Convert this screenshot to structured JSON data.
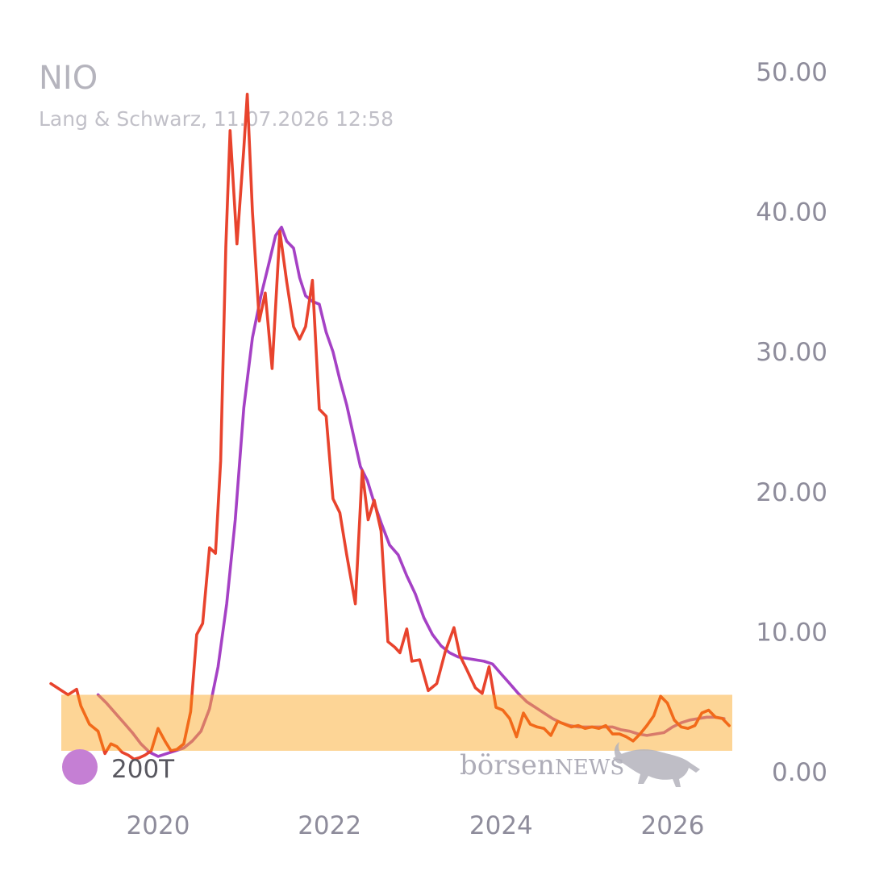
{
  "header": {
    "title": "NIO",
    "subtitle": "Lang & Schwarz, 11.07.2026 12:58"
  },
  "legend": {
    "label": "200T",
    "color": "#c57fd4"
  },
  "watermark": {
    "brand_lower": "börsen",
    "brand_upper": "NEWS",
    "icon": "bull-icon"
  },
  "colors": {
    "price": "#e8432d",
    "price_in_band": "#f26a1a",
    "sma": "#a541c5",
    "sma_in_band": "#d87a6a",
    "band": "#fdd596"
  },
  "chart_data": {
    "type": "line",
    "title": "NIO",
    "subtitle": "Lang & Schwarz, 11.07.2026 12:58",
    "xlabel": "",
    "ylabel": "",
    "xlim": [
      2018.9,
      2026.7
    ],
    "ylim": [
      0,
      50
    ],
    "x_ticks": [
      2020,
      2022,
      2024,
      2026
    ],
    "y_ticks": [
      "0.00",
      "10.00",
      "20.00",
      "30.00",
      "40.00",
      "50.00"
    ],
    "y_axis_position": "right",
    "grid": false,
    "legend_position": "bottom-left",
    "band": {
      "y_from": 1.5,
      "y_to": 5.5
    },
    "series": [
      {
        "kind": "price",
        "points": [
          [
            2018.75,
            6.3
          ],
          [
            2018.95,
            5.5
          ],
          [
            2019.05,
            5.9
          ],
          [
            2019.1,
            4.7
          ],
          [
            2019.2,
            3.4
          ],
          [
            2019.3,
            2.9
          ],
          [
            2019.38,
            1.3
          ],
          [
            2019.45,
            2.0
          ],
          [
            2019.52,
            1.8
          ],
          [
            2019.58,
            1.4
          ],
          [
            2019.65,
            1.2
          ],
          [
            2019.72,
            0.9
          ],
          [
            2019.78,
            1.0
          ],
          [
            2019.85,
            1.2
          ],
          [
            2019.92,
            1.5
          ],
          [
            2020.0,
            3.1
          ],
          [
            2020.08,
            2.2
          ],
          [
            2020.15,
            1.5
          ],
          [
            2020.22,
            1.6
          ],
          [
            2020.3,
            2.0
          ],
          [
            2020.38,
            4.3
          ],
          [
            2020.45,
            9.8
          ],
          [
            2020.52,
            10.6
          ],
          [
            2020.6,
            16.0
          ],
          [
            2020.67,
            15.6
          ],
          [
            2020.73,
            22.2
          ],
          [
            2020.79,
            37.5
          ],
          [
            2020.84,
            45.8
          ],
          [
            2020.92,
            37.7
          ],
          [
            2021.0,
            44.5
          ],
          [
            2021.04,
            48.4
          ],
          [
            2021.1,
            40.0
          ],
          [
            2021.18,
            32.2
          ],
          [
            2021.25,
            34.2
          ],
          [
            2021.33,
            28.8
          ],
          [
            2021.42,
            38.6
          ],
          [
            2021.5,
            35.0
          ],
          [
            2021.58,
            31.8
          ],
          [
            2021.65,
            30.9
          ],
          [
            2021.72,
            31.8
          ],
          [
            2021.8,
            35.1
          ],
          [
            2021.88,
            25.9
          ],
          [
            2021.96,
            25.4
          ],
          [
            2022.04,
            19.5
          ],
          [
            2022.12,
            18.5
          ],
          [
            2022.2,
            15.5
          ],
          [
            2022.3,
            12.0
          ],
          [
            2022.38,
            21.5
          ],
          [
            2022.45,
            18.0
          ],
          [
            2022.52,
            19.4
          ],
          [
            2022.6,
            17.2
          ],
          [
            2022.68,
            9.3
          ],
          [
            2022.76,
            8.9
          ],
          [
            2022.82,
            8.5
          ],
          [
            2022.9,
            10.2
          ],
          [
            2022.96,
            7.9
          ],
          [
            2023.05,
            8.0
          ],
          [
            2023.15,
            5.8
          ],
          [
            2023.25,
            6.3
          ],
          [
            2023.35,
            8.6
          ],
          [
            2023.45,
            10.3
          ],
          [
            2023.52,
            8.3
          ],
          [
            2023.6,
            7.3
          ],
          [
            2023.7,
            6.0
          ],
          [
            2023.78,
            5.6
          ],
          [
            2023.86,
            7.5
          ],
          [
            2023.94,
            4.6
          ],
          [
            2024.02,
            4.4
          ],
          [
            2024.1,
            3.8
          ],
          [
            2024.18,
            2.5
          ],
          [
            2024.26,
            4.2
          ],
          [
            2024.34,
            3.4
          ],
          [
            2024.42,
            3.2
          ],
          [
            2024.5,
            3.1
          ],
          [
            2024.58,
            2.6
          ],
          [
            2024.66,
            3.6
          ],
          [
            2024.74,
            3.4
          ],
          [
            2024.82,
            3.2
          ],
          [
            2024.9,
            3.3
          ],
          [
            2024.98,
            3.1
          ],
          [
            2025.06,
            3.2
          ],
          [
            2025.14,
            3.1
          ],
          [
            2025.22,
            3.3
          ],
          [
            2025.3,
            2.7
          ],
          [
            2025.38,
            2.7
          ],
          [
            2025.46,
            2.5
          ],
          [
            2025.54,
            2.2
          ],
          [
            2025.62,
            2.7
          ],
          [
            2025.7,
            3.3
          ],
          [
            2025.78,
            4.0
          ],
          [
            2025.86,
            5.4
          ],
          [
            2025.94,
            4.9
          ],
          [
            2026.02,
            3.7
          ],
          [
            2026.1,
            3.2
          ],
          [
            2026.18,
            3.1
          ],
          [
            2026.26,
            3.3
          ],
          [
            2026.34,
            4.2
          ],
          [
            2026.42,
            4.4
          ],
          [
            2026.5,
            3.9
          ],
          [
            2026.58,
            3.8
          ],
          [
            2026.66,
            3.3
          ]
        ]
      },
      {
        "kind": "sma",
        "name": "200T",
        "points": [
          [
            2019.3,
            5.5
          ],
          [
            2019.4,
            4.9
          ],
          [
            2019.5,
            4.2
          ],
          [
            2019.6,
            3.5
          ],
          [
            2019.7,
            2.8
          ],
          [
            2019.8,
            2.0
          ],
          [
            2019.9,
            1.4
          ],
          [
            2020.0,
            1.1
          ],
          [
            2020.1,
            1.3
          ],
          [
            2020.2,
            1.5
          ],
          [
            2020.3,
            1.7
          ],
          [
            2020.4,
            2.2
          ],
          [
            2020.5,
            2.9
          ],
          [
            2020.6,
            4.5
          ],
          [
            2020.7,
            7.5
          ],
          [
            2020.8,
            12.0
          ],
          [
            2020.9,
            18.0
          ],
          [
            2021.0,
            26.0
          ],
          [
            2021.1,
            31.0
          ],
          [
            2021.2,
            34.0
          ],
          [
            2021.3,
            36.5
          ],
          [
            2021.37,
            38.3
          ],
          [
            2021.44,
            38.9
          ],
          [
            2021.5,
            37.9
          ],
          [
            2021.58,
            37.4
          ],
          [
            2021.65,
            35.3
          ],
          [
            2021.72,
            34.0
          ],
          [
            2021.8,
            33.6
          ],
          [
            2021.88,
            33.4
          ],
          [
            2021.96,
            31.4
          ],
          [
            2022.04,
            30.0
          ],
          [
            2022.12,
            28.0
          ],
          [
            2022.2,
            26.2
          ],
          [
            2022.28,
            24.0
          ],
          [
            2022.36,
            21.8
          ],
          [
            2022.44,
            20.8
          ],
          [
            2022.52,
            19.2
          ],
          [
            2022.6,
            17.8
          ],
          [
            2022.7,
            16.2
          ],
          [
            2022.8,
            15.5
          ],
          [
            2022.9,
            14.0
          ],
          [
            2023.0,
            12.7
          ],
          [
            2023.1,
            11.0
          ],
          [
            2023.2,
            9.8
          ],
          [
            2023.3,
            9.0
          ],
          [
            2023.4,
            8.5
          ],
          [
            2023.5,
            8.2
          ],
          [
            2023.6,
            8.1
          ],
          [
            2023.7,
            8.0
          ],
          [
            2023.8,
            7.9
          ],
          [
            2023.9,
            7.7
          ],
          [
            2024.0,
            7.0
          ],
          [
            2024.1,
            6.3
          ],
          [
            2024.2,
            5.6
          ],
          [
            2024.3,
            5.0
          ],
          [
            2024.4,
            4.6
          ],
          [
            2024.5,
            4.2
          ],
          [
            2024.6,
            3.8
          ],
          [
            2024.7,
            3.5
          ],
          [
            2024.8,
            3.3
          ],
          [
            2024.9,
            3.2
          ],
          [
            2025.0,
            3.2
          ],
          [
            2025.1,
            3.2
          ],
          [
            2025.2,
            3.2
          ],
          [
            2025.3,
            3.2
          ],
          [
            2025.4,
            3.0
          ],
          [
            2025.5,
            2.9
          ],
          [
            2025.6,
            2.7
          ],
          [
            2025.7,
            2.6
          ],
          [
            2025.8,
            2.7
          ],
          [
            2025.9,
            2.8
          ],
          [
            2026.0,
            3.2
          ],
          [
            2026.1,
            3.5
          ],
          [
            2026.2,
            3.7
          ],
          [
            2026.3,
            3.8
          ],
          [
            2026.4,
            3.9
          ],
          [
            2026.5,
            3.9
          ],
          [
            2026.6,
            3.8
          ]
        ]
      }
    ]
  }
}
